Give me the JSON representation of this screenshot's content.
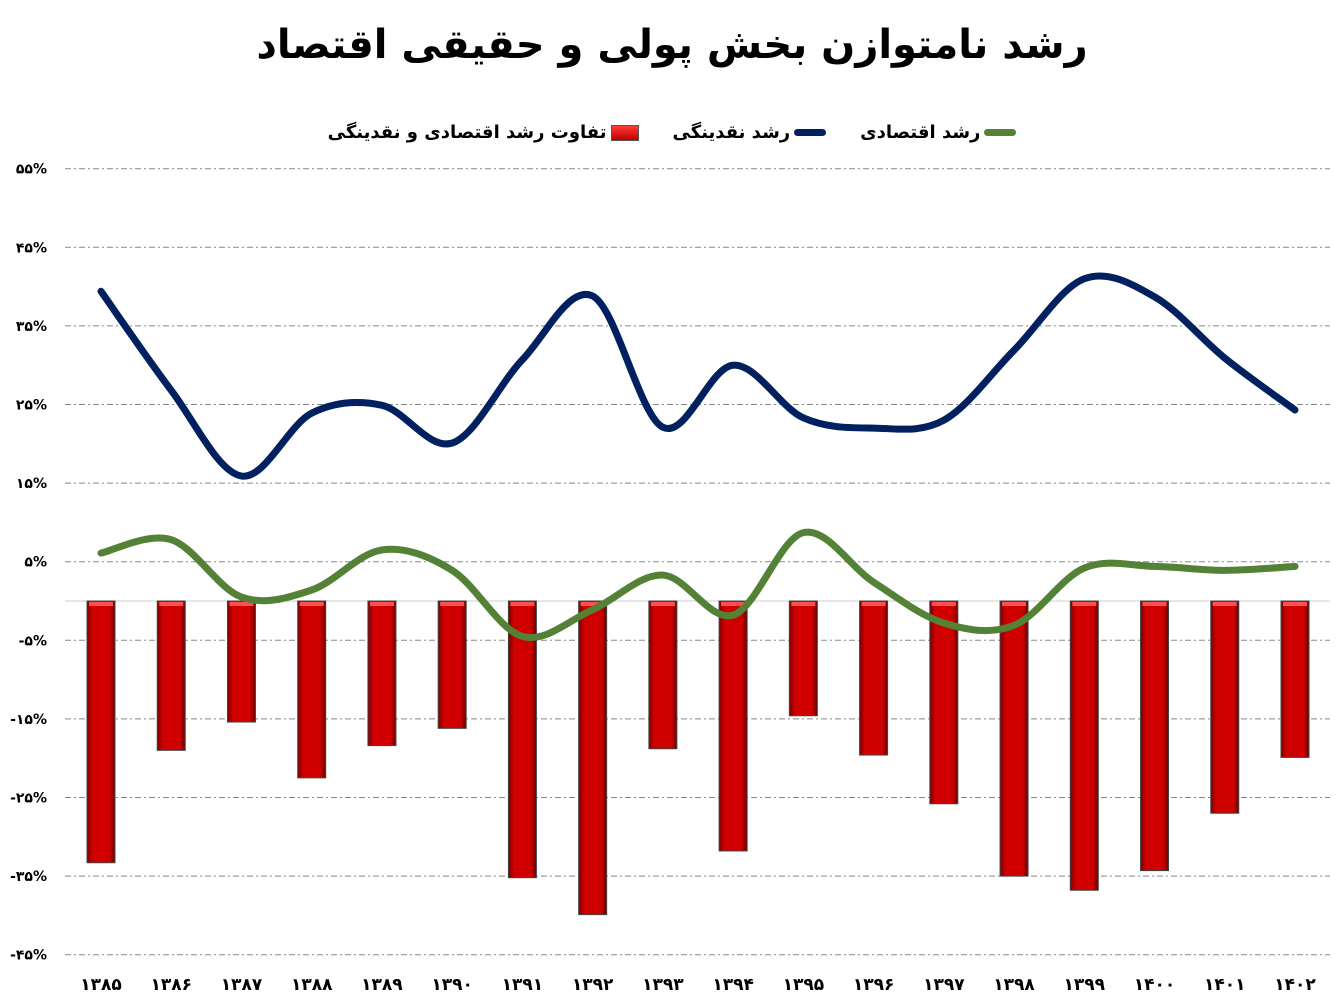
{
  "chart_data": {
    "type": "bar+line",
    "title": "رشد نامتوازن بخش پولی و حقیقی اقتصاد",
    "categories": [
      "۱۳۸۵",
      "۱۳۸۶",
      "۱۳۸۷",
      "۱۳۸۸",
      "۱۳۸۹",
      "۱۳۹۰",
      "۱۳۹۱",
      "۱۳۹۲",
      "۱۳۹۳",
      "۱۳۹۴",
      "۱۳۹۵",
      "۱۳۹۶",
      "۱۳۹۷",
      "۱۳۹۸",
      "۱۳۹۹",
      "۱۴۰۰",
      "۱۴۰۱",
      "۱۴۰۲"
    ],
    "yticks": [
      55,
      45,
      35,
      25,
      15,
      5,
      -5,
      -15,
      -25,
      -35,
      -45
    ],
    "ytick_labels": [
      "۵۵%",
      "۴۵%",
      "۳۵%",
      "۲۵%",
      "۱۵%",
      "۵%",
      "-۵%",
      "-۱۵%",
      "-۲۵%",
      "-۳۵%",
      "-۴۵%"
    ],
    "ylim": [
      -45,
      55
    ],
    "grid": true,
    "legend_placement": "top",
    "series": [
      {
        "name": "رشد اقتصادی",
        "type": "line",
        "color": "#538135",
        "values": [
          6.1,
          7.8,
          0.5,
          1.4,
          6.5,
          3.9,
          -4.5,
          -1.1,
          3.3,
          -1.8,
          8.7,
          2.4,
          -2.8,
          -3.1,
          4.2,
          4.4,
          3.9,
          4.4
        ]
      },
      {
        "name": "رشد نقدینگی",
        "type": "line",
        "color": "#002060",
        "values": [
          39.4,
          26.8,
          15.9,
          23.9,
          24.9,
          20.1,
          30.7,
          38.8,
          22.1,
          30.0,
          23.3,
          22.0,
          23.0,
          31.9,
          41.0,
          38.7,
          30.9,
          24.3
        ]
      },
      {
        "name": "تفاوت رشد اقتصادی و نقدینگی",
        "type": "bar",
        "color": "#c00000",
        "values": [
          -33.3,
          -19.0,
          -15.4,
          -22.5,
          -18.4,
          -16.2,
          -35.2,
          -39.9,
          -18.8,
          -31.8,
          -14.6,
          -19.6,
          -25.8,
          -35.0,
          -36.8,
          -34.3,
          -27.0,
          -19.9
        ]
      }
    ]
  }
}
